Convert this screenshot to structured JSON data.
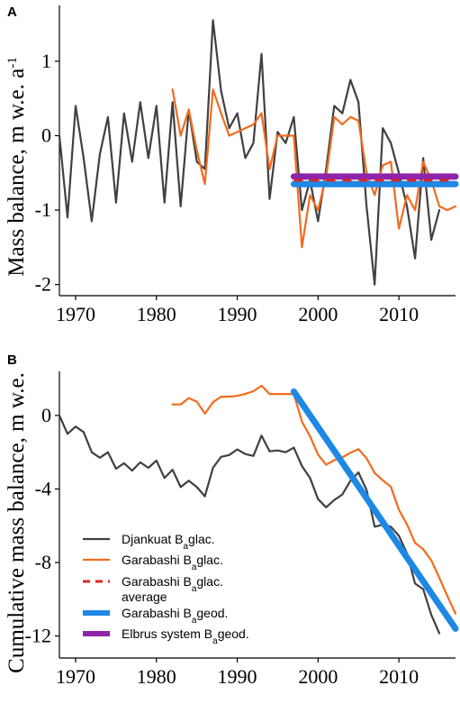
{
  "panels": {
    "a_letter": "A",
    "b_letter": "B"
  },
  "legend": {
    "items": [
      {
        "label_main": "Djankuat B",
        "label_sub": "a",
        "label_tail": "glac.",
        "color": "#404040",
        "style": "solid"
      },
      {
        "label_main": "Garabashi B",
        "label_sub": "a",
        "label_tail": "glac.",
        "color": "#f26b1d",
        "style": "solid"
      },
      {
        "label_main": "Garabashi B",
        "label_sub": "a",
        "label_tail": "glac.",
        "label_line2": "average",
        "color": "#d62728",
        "style": "dashed"
      },
      {
        "label_main": "Garabashi B",
        "label_sub": "a",
        "label_tail": "geod.",
        "color": "#1e88e5",
        "style": "thick"
      },
      {
        "label_main": "Elbrus system B",
        "label_sub": "a",
        "label_tail": "geod.",
        "color": "#8e24aa",
        "style": "thick"
      }
    ]
  },
  "chart_data": [
    {
      "type": "line",
      "panel": "A",
      "ylabel_main": "Mass balance, m w.e. a",
      "ylabel_sup": "-1",
      "xlim": [
        1968,
        2017
      ],
      "ylim": [
        -2.15,
        1.75
      ],
      "xticks": [
        1970,
        1980,
        1990,
        2000,
        2010
      ],
      "yticks": [
        -2,
        -1,
        0,
        1
      ],
      "series": [
        {
          "name": "Djankuat Ba glac.",
          "color": "#404040",
          "x": [
            1968,
            1969,
            1970,
            1971,
            1972,
            1973,
            1974,
            1975,
            1976,
            1977,
            1978,
            1979,
            1980,
            1981,
            1982,
            1983,
            1984,
            1985,
            1986,
            1987,
            1988,
            1989,
            1990,
            1991,
            1992,
            1993,
            1994,
            1995,
            1996,
            1997,
            1998,
            1999,
            2000,
            2001,
            2002,
            2003,
            2004,
            2005,
            2006,
            2007,
            2008,
            2009,
            2010,
            2011,
            2012,
            2013,
            2014,
            2015
          ],
          "y": [
            0.0,
            -1.1,
            0.4,
            -0.3,
            -1.15,
            -0.25,
            0.25,
            -0.9,
            0.3,
            -0.35,
            0.45,
            -0.3,
            0.4,
            -0.9,
            0.45,
            -0.95,
            0.35,
            -0.35,
            -0.45,
            1.55,
            0.6,
            0.1,
            0.3,
            -0.3,
            -0.1,
            1.1,
            -0.85,
            0.05,
            -0.1,
            0.25,
            -1.0,
            -0.6,
            -1.15,
            -0.45,
            0.4,
            0.3,
            0.75,
            0.45,
            -0.95,
            -2.0,
            0.1,
            -0.1,
            -0.5,
            -0.95,
            -1.65,
            -0.3,
            -1.4,
            -1.0
          ]
        },
        {
          "name": "Garabashi Ba glac.",
          "color": "#f26b1d",
          "x": [
            1982,
            1983,
            1984,
            1985,
            1986,
            1987,
            1988,
            1989,
            1990,
            1991,
            1992,
            1993,
            1994,
            1995,
            1996,
            1997,
            1998,
            1999,
            2000,
            2001,
            2002,
            2003,
            2004,
            2005,
            2006,
            2007,
            2008,
            2009,
            2010,
            2011,
            2012,
            2013,
            2014,
            2015,
            2016,
            2017
          ],
          "y": [
            0.62,
            0.0,
            0.35,
            -0.2,
            -0.65,
            0.62,
            0.3,
            0.0,
            0.05,
            0.1,
            0.15,
            0.3,
            -0.45,
            0.0,
            0.0,
            0.0,
            -1.5,
            -0.8,
            -1.0,
            -0.55,
            0.25,
            0.15,
            0.25,
            0.2,
            -0.5,
            -0.8,
            -0.4,
            -0.35,
            -1.25,
            -0.8,
            -1.0,
            -0.35,
            -0.6,
            -0.95,
            -1.0,
            -0.95
          ]
        },
        {
          "name": "Garabashi Ba glac. average",
          "color": "#d62728",
          "dashed": true,
          "x": [
            1997,
            2017
          ],
          "y": [
            -0.6,
            -0.6
          ]
        },
        {
          "name": "Garabashi Ba geod.",
          "color": "#1e88e5",
          "thick": true,
          "x": [
            1997,
            2017
          ],
          "y": [
            -0.65,
            -0.65
          ]
        },
        {
          "name": "Elbrus system Ba geod.",
          "color": "#8e24aa",
          "thick": true,
          "x": [
            1997,
            2017
          ],
          "y": [
            -0.55,
            -0.55
          ]
        }
      ]
    },
    {
      "type": "line",
      "panel": "B",
      "ylabel_main": "Cumulative mass balance, m w.e.",
      "xlim": [
        1968,
        2017
      ],
      "ylim": [
        -13.2,
        2.4
      ],
      "xticks": [
        1970,
        1980,
        1990,
        2000,
        2010
      ],
      "yticks": [
        -12,
        -8,
        -4,
        0
      ],
      "series": [
        {
          "name": "Djankuat Ba glac.",
          "color": "#404040",
          "x": [
            1968,
            1969,
            1970,
            1971,
            1972,
            1973,
            1974,
            1975,
            1976,
            1977,
            1978,
            1979,
            1980,
            1981,
            1982,
            1983,
            1984,
            1985,
            1986,
            1987,
            1988,
            1989,
            1990,
            1991,
            1992,
            1993,
            1994,
            1995,
            1996,
            1997,
            1998,
            1999,
            2000,
            2001,
            2002,
            2003,
            2004,
            2005,
            2006,
            2007,
            2008,
            2009,
            2010,
            2011,
            2012,
            2013,
            2014,
            2015
          ],
          "y": [
            0.0,
            -1.0,
            -0.6,
            -0.9,
            -2.0,
            -2.3,
            -2.0,
            -2.9,
            -2.6,
            -3.0,
            -2.55,
            -2.85,
            -2.45,
            -3.4,
            -2.95,
            -3.9,
            -3.55,
            -3.9,
            -4.4,
            -2.85,
            -2.25,
            -2.15,
            -1.85,
            -2.1,
            -2.2,
            -1.1,
            -1.95,
            -1.9,
            -2.0,
            -1.75,
            -2.75,
            -3.4,
            -4.55,
            -5.0,
            -4.6,
            -4.3,
            -3.55,
            -3.1,
            -4.05,
            -6.05,
            -5.95,
            -6.05,
            -6.55,
            -7.5,
            -9.15,
            -9.45,
            -10.85,
            -11.85
          ]
        },
        {
          "name": "Garabashi Ba glac.",
          "color": "#f26b1d",
          "x": [
            1982,
            1983,
            1984,
            1985,
            1986,
            1987,
            1988,
            1989,
            1990,
            1991,
            1992,
            1993,
            1994,
            1995,
            1996,
            1997,
            1998,
            1999,
            2000,
            2001,
            2002,
            2003,
            2004,
            2005,
            2006,
            2007,
            2008,
            2009,
            2010,
            2011,
            2012,
            2013,
            2014,
            2015,
            2016,
            2017
          ],
          "y": [
            0.6,
            0.6,
            0.95,
            0.75,
            0.1,
            0.72,
            1.02,
            1.02,
            1.07,
            1.17,
            1.32,
            1.62,
            1.17,
            1.17,
            1.17,
            1.17,
            -0.33,
            -1.13,
            -2.13,
            -2.68,
            -2.43,
            -2.28,
            -2.03,
            -1.83,
            -2.33,
            -3.13,
            -3.53,
            -3.88,
            -5.13,
            -5.93,
            -6.93,
            -7.28,
            -7.88,
            -8.83,
            -9.83,
            -10.78
          ]
        },
        {
          "name": "Garabashi Ba geod.",
          "color": "#1e88e5",
          "thick": true,
          "x": [
            1997,
            2017
          ],
          "y": [
            1.3,
            -11.6
          ]
        }
      ]
    }
  ]
}
